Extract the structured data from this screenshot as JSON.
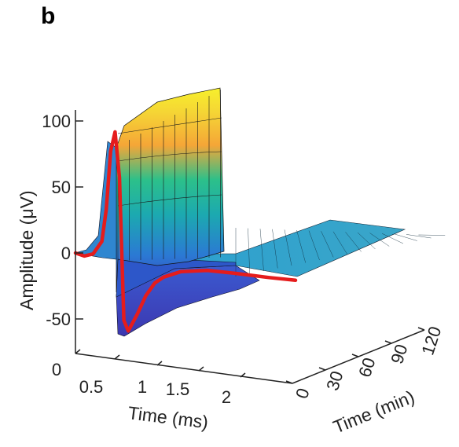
{
  "panel_label": "b",
  "chart_data": {
    "type": "surface3d",
    "title": "",
    "ylabel": "Amplitude (μV)",
    "xlabel": "Time (ms)",
    "zlabel": "Time (min)",
    "x_ticks": [
      "0",
      "0.5",
      "1",
      "1.5",
      "2"
    ],
    "y_ticks": [
      "-50",
      "0",
      "50",
      "100"
    ],
    "z_ticks": [
      "0",
      "30",
      "60",
      "90",
      "120"
    ],
    "x_range_ms": [
      0,
      2.5
    ],
    "y_range_uV": [
      -70,
      110
    ],
    "z_range_min": [
      0,
      120
    ],
    "grid": false,
    "colormap": [
      "#3b3fb8",
      "#2b79d4",
      "#1ca9b0",
      "#2cc08a",
      "#f5a637",
      "#f5d535",
      "#f7f02c"
    ],
    "waveform_overlay": {
      "name": "",
      "color": "#e51c1c",
      "time_min": 0,
      "x_ms": [
        0,
        0.1,
        0.2,
        0.3,
        0.35,
        0.4,
        0.45,
        0.5,
        0.55,
        0.6,
        0.7,
        0.8,
        0.9,
        1.0,
        1.2,
        1.5,
        1.8,
        2.0,
        2.2,
        2.5
      ],
      "y_uV": [
        0,
        -2,
        0,
        10,
        35,
        80,
        95,
        60,
        -50,
        -58,
        -45,
        -30,
        -20,
        -15,
        -10,
        -8,
        -9,
        -10,
        -11,
        -12
      ]
    },
    "surface_peak": {
      "x_ms": 0.45,
      "amplitude_uV_at_0min": 95,
      "amplitude_uV_at_120min": 100
    }
  }
}
